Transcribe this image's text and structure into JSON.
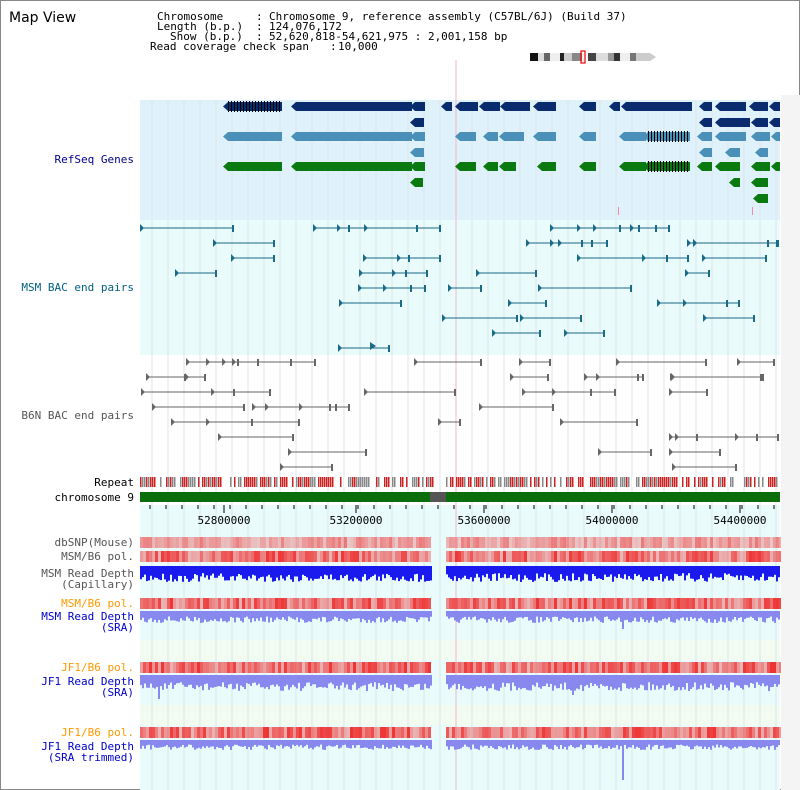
{
  "title": "Map View",
  "info": {
    "chromosome_label": "Chromosome",
    "chromosome_value": "Chromosome 9, reference assembly (C57BL/6J) (Build 37)",
    "length_label": "Length (b.p.)",
    "length_value": "124,076,172",
    "show_label": "Show (b.p.)",
    "show_value": "52,620,818-54,621,975 : 2,001,158 bp",
    "coverage_label": "Read coverage check span",
    "coverage_value": "10,000"
  },
  "tracks": {
    "refseq": "RefSeq Genes",
    "msm_bac": "MSM BAC end pairs",
    "b6n_bac": "B6N BAC end pairs",
    "repeat": "Repeat",
    "chromosome": "chromosome 9",
    "dbsnp": "dbSNP(Mouse)",
    "msm_b6_pol_1": "MSM/B6 pol.",
    "msm_depth_cap": "MSM Read Depth\n(Capillary)",
    "msm_b6_pol_2": "MSM/B6 pol.",
    "msm_depth_sra": "MSM Read Depth\n(SRA)",
    "jf1_b6_pol_1": "JF1/B6 pol.",
    "jf1_depth_sra": "JF1 Read Depth\n(SRA)",
    "jf1_b6_pol_2": "JF1/B6 pol.",
    "jf1_depth_trim": "JF1 Read Depth\n(SRA trimmed)"
  },
  "axis": {
    "ticks": [
      "52800000",
      "53200000",
      "53600000",
      "54000000",
      "54400000"
    ]
  },
  "colors": {
    "refseq_bg": "#dff1fb",
    "light_bg": "#e9fbfb",
    "gene_navy": "#0a2c6e",
    "gene_steel": "#4a90b8",
    "gene_green": "#0a7a10",
    "msm_line": "#1a6a8a",
    "b6n_line": "#666666",
    "chrom_green": "#0b6e0b",
    "depth_blue": "#1a1aee",
    "depth_light": "#8888ee",
    "pol_red": "#ee3333"
  }
}
